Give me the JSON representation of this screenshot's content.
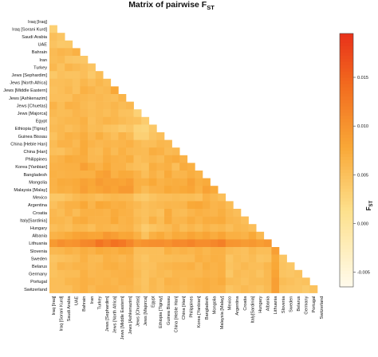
{
  "chart_data": {
    "type": "heatmap",
    "title": "Matrix of pairwise F",
    "title_sub": "ST",
    "colorbar_label": "F",
    "colorbar_label_sub": "ST",
    "colorbar_ticks": [
      "0.015",
      "0.010",
      "0.005",
      "0.000",
      "-0.005"
    ],
    "colorbar_tick_values": [
      0.015,
      0.01,
      0.005,
      0.0,
      -0.005
    ],
    "colorbar_range": [
      -0.0065,
      0.0195
    ],
    "colors": {
      "low": "#fffbec",
      "mid1": "#fde08c",
      "mid2": "#f9a837",
      "mid3": "#f26a1e",
      "high": "#e8311a"
    },
    "populations": [
      "Iraq [Iraq]",
      "Iraq [Sorani Kurd]",
      "Saudi Arabia",
      "UAE",
      "Bahrain",
      "Iran",
      "Turkey",
      "Jews [Sephardim]",
      "Jews [North Africa]",
      "Jews [Middle Eastern]",
      "Jews [Ashkenazim]",
      "Jews [Chuetas]",
      "Jews [Majorca]",
      "Egypt",
      "Ethiopia [Tigray]",
      "Guinea Bissau",
      "China [Heble Han]",
      "China [Han]",
      "Philippines",
      "Korea [Yanbian]",
      "Bangladesh",
      "Mongolia",
      "Malaysia [Malay]",
      "Mexico",
      "Argentina",
      "Croatia",
      "Italy[Sardinia]",
      "Hungary",
      "Albania",
      "Lithuania",
      "Slovenia",
      "Sweden",
      "Belarus",
      "Germany",
      "Portugal",
      "Switzerland"
    ],
    "fst_lower_triangle": [
      [],
      [
        0.0032
      ],
      [
        0.0051,
        0.0044
      ],
      [
        0.0047,
        0.004,
        0.0041
      ],
      [
        0.0056,
        0.0063,
        0.006,
        0.0068
      ],
      [
        0.0054,
        0.0057,
        0.0045,
        0.0043,
        0.0043
      ],
      [
        0.006,
        0.0048,
        0.0063,
        0.0057,
        0.0052,
        0.0045
      ],
      [
        0.0041,
        0.005,
        0.0047,
        0.0047,
        0.0052,
        0.004,
        0.0054
      ],
      [
        0.0052,
        0.0053,
        0.0055,
        0.0049,
        0.0061,
        0.0052,
        0.0061,
        0.0053
      ],
      [
        0.0049,
        0.0053,
        0.0059,
        0.0049,
        0.0068,
        0.0063,
        0.0055,
        0.0058,
        0.0078
      ],
      [
        0.0051,
        0.0051,
        0.0051,
        0.0063,
        0.006,
        0.0056,
        0.0059,
        0.0055,
        0.0053,
        0.0064
      ],
      [
        0.0065,
        0.0054,
        0.0067,
        0.0065,
        0.0057,
        0.0053,
        0.0058,
        0.0056,
        0.0062,
        0.0055,
        0.0059
      ],
      [
        0.0058,
        0.0054,
        0.0055,
        0.0063,
        0.0059,
        0.0054,
        0.0057,
        0.0053,
        0.006,
        0.0049,
        0.0048,
        0.003
      ],
      [
        0.0052,
        0.0057,
        0.0061,
        0.0061,
        0.0068,
        0.0051,
        0.0058,
        0.0064,
        0.0061,
        0.0056,
        0.0051,
        0.0049,
        0.0036
      ],
      [
        0.0056,
        0.006,
        0.0052,
        0.0057,
        0.0065,
        0.0054,
        0.0056,
        0.0048,
        0.0046,
        0.0038,
        0.0044,
        0.0028,
        0.0026,
        0.0042
      ],
      [
        0.0048,
        0.006,
        0.0068,
        0.0064,
        0.0072,
        0.0059,
        0.007,
        0.006,
        0.0051,
        0.0065,
        0.0056,
        0.0032,
        0.0031,
        0.0045,
        0.0051
      ],
      [
        0.0055,
        0.0066,
        0.0066,
        0.0058,
        0.0075,
        0.0064,
        0.0059,
        0.0063,
        0.0061,
        0.0063,
        0.0067,
        0.0057,
        0.0051,
        0.0053,
        0.0061,
        0.0058
      ],
      [
        0.0051,
        0.0049,
        0.0058,
        0.0064,
        0.0075,
        0.0058,
        0.0055,
        0.0069,
        0.0056,
        0.0068,
        0.0059,
        0.0057,
        0.0056,
        0.0071,
        0.0067,
        0.0056,
        0.0059
      ],
      [
        0.0062,
        0.0066,
        0.0075,
        0.0072,
        0.0072,
        0.0059,
        0.0059,
        0.0072,
        0.0067,
        0.0065,
        0.0071,
        0.0051,
        0.0056,
        0.0061,
        0.0056,
        0.007,
        0.0074,
        0.0066
      ],
      [
        0.0066,
        0.0067,
        0.0069,
        0.0069,
        0.0086,
        0.0075,
        0.0066,
        0.0077,
        0.0066,
        0.0066,
        0.0056,
        0.0051,
        0.0048,
        0.0071,
        0.0065,
        0.0069,
        0.0052,
        0.0073,
        0.0069
      ],
      [
        0.0068,
        0.0065,
        0.0067,
        0.0068,
        0.0068,
        0.0068,
        0.0082,
        0.0087,
        0.0068,
        0.0076,
        0.0074,
        0.0065,
        0.0053,
        0.0067,
        0.0058,
        0.0076,
        0.0062,
        0.0063,
        0.0071,
        0.0064
      ],
      [
        0.0066,
        0.0074,
        0.0073,
        0.0076,
        0.0084,
        0.0079,
        0.0092,
        0.0084,
        0.0085,
        0.0082,
        0.0088,
        0.0069,
        0.0068,
        0.0077,
        0.0066,
        0.007,
        0.0072,
        0.0071,
        0.0084,
        0.007,
        0.0074
      ],
      [
        0.0065,
        0.0071,
        0.0069,
        0.0074,
        0.0087,
        0.0077,
        0.0082,
        0.0088,
        0.0082,
        0.0093,
        0.0093,
        0.0068,
        0.0056,
        0.0066,
        0.0067,
        0.0077,
        0.0073,
        0.0077,
        0.0081,
        0.0068,
        0.0084,
        0.0076
      ],
      [
        0.0042,
        0.0042,
        0.0049,
        0.0057,
        0.0062,
        0.0058,
        0.0052,
        0.0057,
        0.0061,
        0.0058,
        0.0057,
        0.0042,
        0.0038,
        0.0047,
        0.0052,
        0.0052,
        0.0055,
        0.0053,
        0.0054,
        0.005,
        0.0067,
        0.0059,
        0.0051
      ],
      [
        0.005,
        0.0059,
        0.0067,
        0.0068,
        0.0078,
        0.0063,
        0.0078,
        0.0075,
        0.0069,
        0.0071,
        0.0064,
        0.0058,
        0.005,
        0.0055,
        0.0058,
        0.0062,
        0.0061,
        0.0062,
        0.0077,
        0.0079,
        0.0072,
        0.0063,
        0.0066,
        0.0054
      ],
      [
        0.0059,
        0.0054,
        0.0066,
        0.0055,
        0.0068,
        0.0068,
        0.0067,
        0.0064,
        0.0074,
        0.0068,
        0.0066,
        0.0053,
        0.0049,
        0.0054,
        0.0049,
        0.0074,
        0.0057,
        0.0055,
        0.0063,
        0.0069,
        0.0065,
        0.0063,
        0.007,
        0.0059,
        0.0052
      ],
      [
        0.0062,
        0.0061,
        0.0056,
        0.0071,
        0.0074,
        0.0066,
        0.0065,
        0.0065,
        0.0077,
        0.0064,
        0.0067,
        0.0057,
        0.005,
        0.0067,
        0.0054,
        0.0074,
        0.0062,
        0.0063,
        0.0072,
        0.0064,
        0.0072,
        0.0072,
        0.0074,
        0.0062,
        0.0059,
        0.0052
      ],
      [
        0.0052,
        0.0057,
        0.0052,
        0.0061,
        0.006,
        0.0053,
        0.0064,
        0.0062,
        0.0058,
        0.0063,
        0.0065,
        0.0051,
        0.0037,
        0.0046,
        0.0051,
        0.0056,
        0.0066,
        0.0054,
        0.0062,
        0.0055,
        0.0064,
        0.0057,
        0.0061,
        0.0052,
        0.0061,
        0.0058,
        0.0052
      ],
      [
        0.0065,
        0.0069,
        0.0075,
        0.0082,
        0.0085,
        0.0081,
        0.0081,
        0.0095,
        0.0088,
        0.0079,
        0.0081,
        0.0068,
        0.0048,
        0.0069,
        0.0076,
        0.0065,
        0.0076,
        0.0073,
        0.0082,
        0.0075,
        0.0082,
        0.0073,
        0.0082,
        0.0069,
        0.0069,
        0.0065,
        0.0077,
        0.0058
      ],
      [
        0.0093,
        0.0104,
        0.0098,
        0.0101,
        0.0112,
        0.0114,
        0.0133,
        0.0121,
        0.0135,
        0.0128,
        0.0114,
        0.0096,
        0.0101,
        0.0104,
        0.0105,
        0.0101,
        0.011,
        0.0109,
        0.0116,
        0.0106,
        0.0106,
        0.0113,
        0.012,
        0.0098,
        0.0097,
        0.0092,
        0.0095,
        0.0089,
        0.0095
      ],
      [
        0.0059,
        0.0061,
        0.0067,
        0.0063,
        0.0071,
        0.0066,
        0.0075,
        0.0071,
        0.0069,
        0.0076,
        0.0073,
        0.0052,
        0.0051,
        0.0053,
        0.0052,
        0.0068,
        0.0062,
        0.0066,
        0.0062,
        0.0067,
        0.0061,
        0.0067,
        0.0067,
        0.0056,
        0.0053,
        0.005,
        0.006,
        0.0053,
        0.0053,
        0.0087
      ],
      [
        0.0045,
        0.0049,
        0.0052,
        0.0056,
        0.0068,
        0.0057,
        0.0056,
        0.0068,
        0.0064,
        0.0059,
        0.0066,
        0.005,
        0.0044,
        0.0053,
        0.0053,
        0.0054,
        0.0056,
        0.0055,
        0.0056,
        0.0069,
        0.0064,
        0.0069,
        0.0067,
        0.0044,
        0.0054,
        0.005,
        0.0055,
        0.0045,
        0.0048,
        0.0076,
        0.0044
      ],
      [
        0.0049,
        0.0063,
        0.0059,
        0.0064,
        0.0064,
        0.0058,
        0.0062,
        0.0069,
        0.007,
        0.0064,
        0.0066,
        0.0052,
        0.0048,
        0.005,
        0.0058,
        0.0062,
        0.0065,
        0.0065,
        0.0069,
        0.0059,
        0.007,
        0.0065,
        0.0069,
        0.0047,
        0.0052,
        0.0058,
        0.0053,
        0.0052,
        0.0061,
        0.0078,
        0.0047,
        0.0042
      ],
      [
        0.0048,
        0.0053,
        0.0055,
        0.0055,
        0.0068,
        0.0059,
        0.0062,
        0.0061,
        0.0065,
        0.0066,
        0.0069,
        0.0056,
        0.0046,
        0.0052,
        0.0057,
        0.0054,
        0.0062,
        0.0061,
        0.0061,
        0.006,
        0.0066,
        0.0064,
        0.0069,
        0.0042,
        0.0056,
        0.0052,
        0.0054,
        0.0047,
        0.0058,
        0.0082,
        0.0046,
        0.0043,
        0.0048
      ],
      [
        0.0053,
        0.0053,
        0.0061,
        0.0063,
        0.0069,
        0.0065,
        0.0062,
        0.0065,
        0.0061,
        0.0067,
        0.0066,
        0.0053,
        0.0045,
        0.006,
        0.0053,
        0.0066,
        0.0064,
        0.006,
        0.0064,
        0.0068,
        0.0071,
        0.0067,
        0.0073,
        0.0056,
        0.0054,
        0.0049,
        0.0055,
        0.0055,
        0.0058,
        0.0087,
        0.0054,
        0.005,
        0.0045,
        0.0048
      ],
      [
        0.0052,
        0.0052,
        0.0052,
        0.0062,
        0.0069,
        0.0058,
        0.0066,
        0.0066,
        0.0065,
        0.0059,
        0.0063,
        0.0055,
        0.0047,
        0.0058,
        0.0052,
        0.0061,
        0.0062,
        0.0056,
        0.0062,
        0.0066,
        0.0071,
        0.0066,
        0.0065,
        0.0046,
        0.0051,
        0.0057,
        0.0052,
        0.0047,
        0.0056,
        0.0086,
        0.0048,
        0.0045,
        0.0044,
        0.0038,
        0.0048
      ]
    ]
  }
}
